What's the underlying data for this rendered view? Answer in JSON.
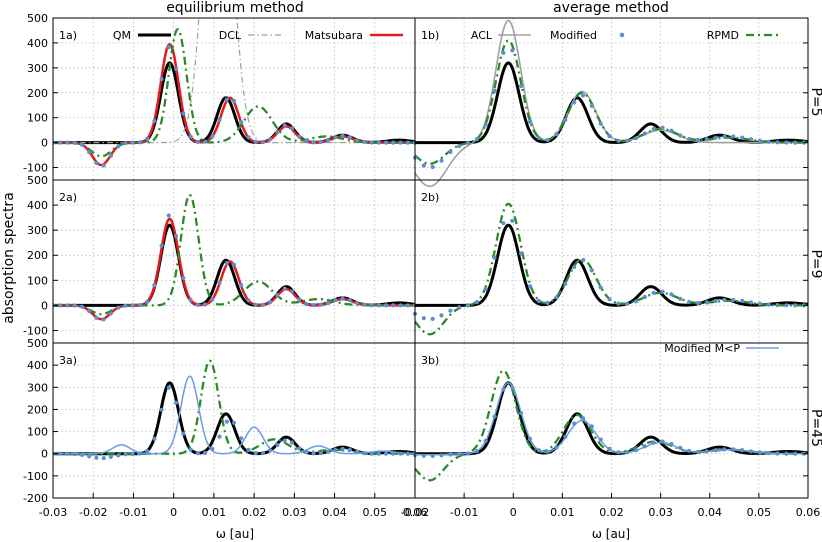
{
  "figure": {
    "column_titles": [
      "equilibrium method",
      "average method"
    ],
    "ylabel": "absorption spectra",
    "xlabel": "ω [au]",
    "row_labels": [
      "P=5",
      "P=9",
      "P=45"
    ],
    "panel_labels": [
      "1a)",
      "1b)",
      "2a)",
      "2b)",
      "3a)",
      "3b)"
    ],
    "x_ticks_left": [
      "-0.03",
      "-0.02",
      "-0.01",
      "0",
      "0.01",
      "0.02",
      "0.03",
      "0.04",
      "0.05",
      "0.06"
    ],
    "x_ticks_right": [
      "-0.02",
      "-0.01",
      "0",
      "0.01",
      "0.02",
      "0.03",
      "0.04",
      "0.05",
      "0.06"
    ],
    "y_ticks_top": [
      "500",
      "400",
      "300",
      "200",
      "100",
      "0",
      "-100"
    ],
    "y_ticks_mid": [
      "500",
      "400",
      "300",
      "200",
      "100",
      "0",
      "-100"
    ],
    "y_ticks_bot": [
      "500",
      "400",
      "300",
      "200",
      "100",
      "0",
      "-100",
      "-200"
    ],
    "legend": {
      "qm": "QM",
      "dcl": "DCL",
      "matsubara": "Matsubara",
      "acl": "ACL",
      "modified": "Modified",
      "rpmd": "RPMD",
      "modified_mp": "Modified M<P"
    },
    "colors": {
      "qm": "#000000",
      "matsubara": "#e41a1c",
      "dcl": "#a0a0a0",
      "acl": "#a0a0a0",
      "modified": "#5b8fd6",
      "rpmd": "#2a8a2a",
      "modified_mp": "#6a9ee0",
      "grid": "#b0b0b0"
    }
  },
  "chart_data": {
    "type": "line",
    "x_range": [
      -0.03,
      0.06
    ],
    "ylim_rows": [
      [
        -150,
        500
      ],
      [
        -150,
        500
      ],
      [
        -200,
        500
      ]
    ],
    "grid": true,
    "panels": [
      {
        "label": "1a)",
        "series": [
          {
            "name": "QM",
            "peaks": [
              [
                -0.001,
                320,
                0.0022
              ],
              [
                0.013,
                180,
                0.0022
              ],
              [
                0.028,
                75,
                0.0022
              ],
              [
                0.042,
                30,
                0.0025
              ],
              [
                0.056,
                10,
                0.003
              ]
            ],
            "style": "solid"
          },
          {
            "name": "DCL",
            "peaks": [
              [
                0.011,
                1500,
                0.0032
              ]
            ],
            "style": "dashdot"
          },
          {
            "name": "Matsubara",
            "peaks": [
              [
                -0.018,
                -90,
                0.0022
              ],
              [
                -0.001,
                395,
                0.0022
              ],
              [
                0.014,
                180,
                0.0022
              ],
              [
                0.028,
                65,
                0.0022
              ],
              [
                0.042,
                25,
                0.0025
              ]
            ],
            "style": "solid"
          },
          {
            "name": "Modified",
            "peaks": [
              [
                -0.018,
                -95,
                0.0022
              ],
              [
                -0.001,
                385,
                0.0022
              ],
              [
                0.014,
                185,
                0.0022
              ],
              [
                0.028,
                70,
                0.0022
              ],
              [
                0.042,
                28,
                0.0025
              ]
            ],
            "style": "points"
          },
          {
            "name": "RPMD",
            "peaks": [
              [
                -0.018,
                -55,
                0.0025
              ],
              [
                0.001,
                455,
                0.0022
              ],
              [
                0.021,
                145,
                0.0035
              ],
              [
                0.038,
                25,
                0.004
              ]
            ],
            "style": "dashdot"
          }
        ]
      },
      {
        "label": "1b)",
        "series": [
          {
            "name": "QM",
            "peaks": [
              [
                -0.001,
                320,
                0.0022
              ],
              [
                0.013,
                180,
                0.0022
              ],
              [
                0.028,
                75,
                0.0022
              ],
              [
                0.042,
                30,
                0.0025
              ],
              [
                0.056,
                10,
                0.003
              ]
            ],
            "style": "solid"
          },
          {
            "name": "ACL",
            "peaks": [
              [
                -0.017,
                -175,
                0.0035
              ],
              [
                -0.001,
                490,
                0.0025
              ],
              [
                0.014,
                205,
                0.0028
              ],
              [
                0.03,
                50,
                0.0035
              ]
            ],
            "style": "solid"
          },
          {
            "name": "Modified",
            "peaks": [
              [
                -0.017,
                -100,
                0.003
              ],
              [
                -0.001,
                390,
                0.0025
              ],
              [
                0.014,
                190,
                0.0028
              ],
              [
                0.03,
                60,
                0.0032
              ],
              [
                0.044,
                25,
                0.004
              ]
            ],
            "style": "points"
          },
          {
            "name": "RPMD",
            "peaks": [
              [
                -0.017,
                -85,
                0.003
              ],
              [
                -0.001,
                410,
                0.0025
              ],
              [
                0.014,
                200,
                0.0028
              ],
              [
                0.03,
                55,
                0.0035
              ],
              [
                0.044,
                20,
                0.004
              ]
            ],
            "style": "dashdot"
          }
        ]
      },
      {
        "label": "2a)",
        "series": [
          {
            "name": "QM",
            "peaks": [
              [
                -0.001,
                320,
                0.0022
              ],
              [
                0.013,
                180,
                0.0022
              ],
              [
                0.028,
                75,
                0.0022
              ],
              [
                0.042,
                30,
                0.0025
              ],
              [
                0.056,
                10,
                0.003
              ]
            ],
            "style": "solid"
          },
          {
            "name": "Matsubara",
            "peaks": [
              [
                -0.018,
                -55,
                0.0022
              ],
              [
                -0.001,
                345,
                0.0022
              ],
              [
                0.014,
                175,
                0.0022
              ],
              [
                0.028,
                65,
                0.0022
              ],
              [
                0.042,
                25,
                0.0025
              ]
            ],
            "style": "solid"
          },
          {
            "name": "Modified",
            "peaks": [
              [
                -0.018,
                -58,
                0.0022
              ],
              [
                -0.001,
                360,
                0.0022
              ],
              [
                0.014,
                180,
                0.0022
              ],
              [
                0.028,
                68,
                0.0022
              ],
              [
                0.042,
                27,
                0.0025
              ]
            ],
            "style": "points"
          },
          {
            "name": "RPMD",
            "peaks": [
              [
                -0.018,
                -35,
                0.0025
              ],
              [
                0.004,
                440,
                0.0022
              ],
              [
                0.021,
                95,
                0.0035
              ],
              [
                0.036,
                25,
                0.004
              ]
            ],
            "style": "dashdot"
          }
        ]
      },
      {
        "label": "2b)",
        "series": [
          {
            "name": "QM",
            "peaks": [
              [
                -0.001,
                320,
                0.0022
              ],
              [
                0.013,
                180,
                0.0022
              ],
              [
                0.028,
                75,
                0.0022
              ],
              [
                0.042,
                30,
                0.0025
              ],
              [
                0.056,
                10,
                0.003
              ]
            ],
            "style": "solid"
          },
          {
            "name": "Modified",
            "peaks": [
              [
                -0.017,
                -55,
                0.003
              ],
              [
                -0.001,
                355,
                0.0025
              ],
              [
                0.014,
                180,
                0.0028
              ],
              [
                0.03,
                55,
                0.0032
              ],
              [
                0.044,
                22,
                0.004
              ]
            ],
            "style": "points"
          },
          {
            "name": "RPMD",
            "peaks": [
              [
                -0.017,
                -115,
                0.0028
              ],
              [
                -0.001,
                405,
                0.0025
              ],
              [
                0.014,
                185,
                0.0028
              ],
              [
                0.03,
                50,
                0.0035
              ],
              [
                0.044,
                18,
                0.004
              ]
            ],
            "style": "dashdot"
          }
        ]
      },
      {
        "label": "3a)",
        "series": [
          {
            "name": "QM",
            "peaks": [
              [
                -0.001,
                320,
                0.0022
              ],
              [
                0.013,
                180,
                0.0022
              ],
              [
                0.028,
                75,
                0.0022
              ],
              [
                0.042,
                30,
                0.0025
              ],
              [
                0.056,
                10,
                0.003
              ]
            ],
            "style": "solid"
          },
          {
            "name": "Modified",
            "peaks": [
              [
                -0.018,
                -20,
                0.003
              ],
              [
                -0.001,
                300,
                0.0022
              ],
              [
                0.014,
                155,
                0.0022
              ],
              [
                0.028,
                60,
                0.0024
              ],
              [
                0.042,
                22,
                0.0026
              ]
            ],
            "style": "points"
          },
          {
            "name": "RPMD",
            "peaks": [
              [
                0.009,
                420,
                0.0022
              ],
              [
                0.025,
                65,
                0.0035
              ],
              [
                0.04,
                18,
                0.004
              ]
            ],
            "style": "dashdot"
          },
          {
            "name": "Modified M<P",
            "peaks": [
              [
                -0.013,
                40,
                0.0022
              ],
              [
                0.004,
                350,
                0.0022
              ],
              [
                0.02,
                120,
                0.0022
              ],
              [
                0.036,
                35,
                0.0025
              ],
              [
                0.052,
                12,
                0.003
              ]
            ],
            "style": "solid"
          }
        ]
      },
      {
        "label": "3b)",
        "series": [
          {
            "name": "QM",
            "peaks": [
              [
                -0.001,
                320,
                0.0022
              ],
              [
                0.013,
                180,
                0.0022
              ],
              [
                0.028,
                75,
                0.0022
              ],
              [
                0.042,
                30,
                0.0025
              ],
              [
                0.056,
                10,
                0.003
              ]
            ],
            "style": "solid"
          },
          {
            "name": "Modified",
            "peaks": [
              [
                -0.017,
                -10,
                0.003
              ],
              [
                -0.001,
                315,
                0.0025
              ],
              [
                0.014,
                160,
                0.0028
              ],
              [
                0.03,
                55,
                0.0032
              ],
              [
                0.044,
                20,
                0.004
              ]
            ],
            "style": "points"
          },
          {
            "name": "RPMD",
            "peaks": [
              [
                -0.017,
                -120,
                0.0028
              ],
              [
                -0.002,
                375,
                0.0025
              ],
              [
                0.013,
                175,
                0.0028
              ],
              [
                0.029,
                55,
                0.0035
              ],
              [
                0.044,
                18,
                0.004
              ]
            ],
            "style": "dashdot"
          },
          {
            "name": "Modified M<P",
            "peaks": [
              [
                -0.017,
                -5,
                0.003
              ],
              [
                -0.001,
                320,
                0.0025
              ],
              [
                0.014,
                150,
                0.0028
              ],
              [
                0.03,
                50,
                0.0032
              ],
              [
                0.044,
                18,
                0.004
              ]
            ],
            "style": "solid"
          }
        ]
      }
    ]
  }
}
